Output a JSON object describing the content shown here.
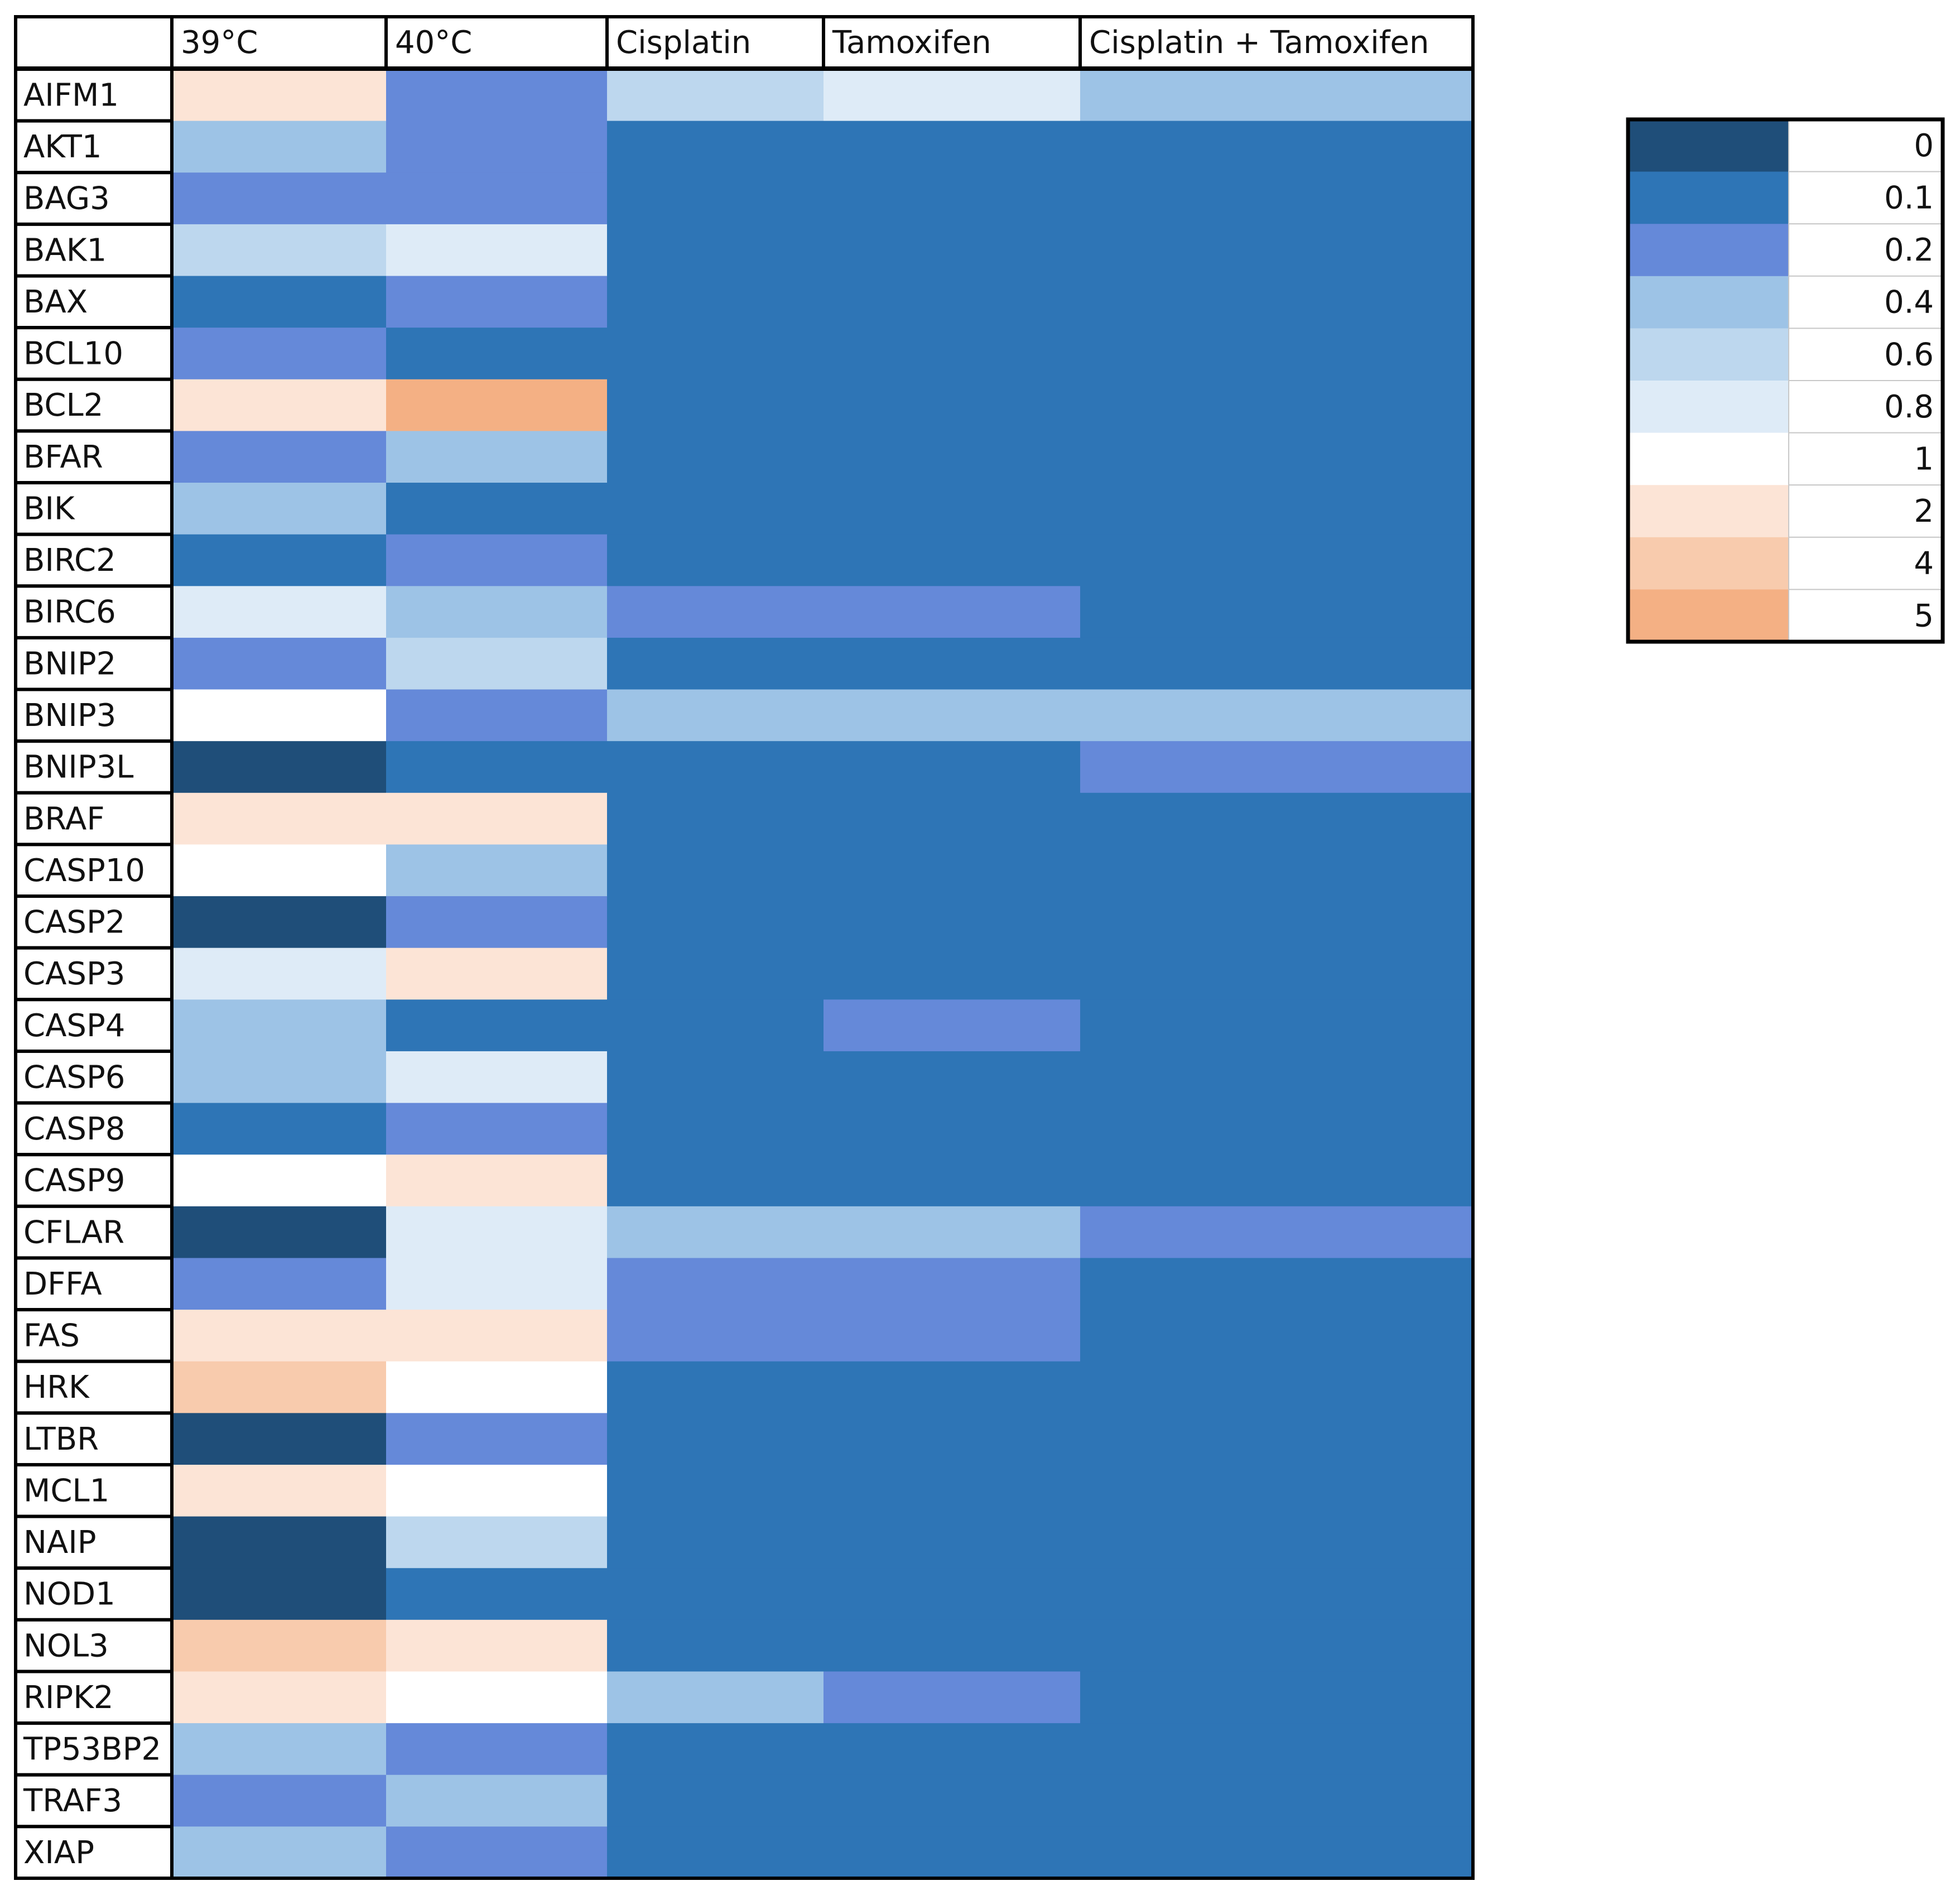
{
  "chart_data": {
    "type": "heatmap",
    "columns": [
      "39°C",
      "40°C",
      "Cisplatin",
      "Tamoxifen",
      "Cisplatin + Tamoxifen"
    ],
    "rows": [
      "AIFM1",
      "AKT1",
      "BAG3",
      "BAK1",
      "BAX",
      "BCL10",
      "BCL2",
      "BFAR",
      "BIK",
      "BIRC2",
      "BIRC6",
      "BNIP2",
      "BNIP3",
      "BNIP3L",
      "BRAF",
      "CASP10",
      "CASP2",
      "CASP3",
      "CASP4",
      "CASP6",
      "CASP8",
      "CASP9",
      "CFLAR",
      "DFFA",
      "FAS",
      "HRK",
      "LTBR",
      "MCL1",
      "NAIP",
      "NOD1",
      "NOL3",
      "RIPK2",
      "TP53BP2",
      "TRAF3",
      "XIAP"
    ],
    "values": [
      [
        2,
        0.2,
        0.6,
        0.8,
        0.4
      ],
      [
        0.4,
        0.2,
        0.1,
        0.1,
        0.1
      ],
      [
        0.2,
        0.2,
        0.1,
        0.1,
        0.1
      ],
      [
        0.6,
        0.8,
        0.1,
        0.1,
        0.1
      ],
      [
        0.1,
        0.2,
        0.1,
        0.1,
        0.1
      ],
      [
        0.2,
        0.1,
        0.1,
        0.1,
        0.1
      ],
      [
        2,
        5,
        0.1,
        0.1,
        0.1
      ],
      [
        0.2,
        0.4,
        0.1,
        0.1,
        0.1
      ],
      [
        0.4,
        0.1,
        0.1,
        0.1,
        0.1
      ],
      [
        0.1,
        0.2,
        0.1,
        0.1,
        0.1
      ],
      [
        0.8,
        0.4,
        0.2,
        0.2,
        0.1
      ],
      [
        0.2,
        0.6,
        0.1,
        0.1,
        0.1
      ],
      [
        1,
        0.2,
        0.4,
        0.4,
        0.4
      ],
      [
        0,
        0.1,
        0.1,
        0.1,
        0.2
      ],
      [
        2,
        2,
        0.1,
        0.1,
        0.1
      ],
      [
        1,
        0.4,
        0.1,
        0.1,
        0.1
      ],
      [
        0,
        0.2,
        0.1,
        0.1,
        0.1
      ],
      [
        0.8,
        2,
        0.1,
        0.1,
        0.1
      ],
      [
        0.4,
        0.1,
        0.1,
        0.2,
        0.1
      ],
      [
        0.4,
        0.8,
        0.1,
        0.1,
        0.1
      ],
      [
        0.1,
        0.2,
        0.1,
        0.1,
        0.1
      ],
      [
        1,
        2,
        0.1,
        0.1,
        0.1
      ],
      [
        0,
        0.8,
        0.4,
        0.4,
        0.2
      ],
      [
        0.2,
        0.8,
        0.2,
        0.2,
        0.1
      ],
      [
        2,
        2,
        0.2,
        0.2,
        0.1
      ],
      [
        4,
        1,
        0.1,
        0.1,
        0.1
      ],
      [
        0,
        0.2,
        0.1,
        0.1,
        0.1
      ],
      [
        2,
        1,
        0.1,
        0.1,
        0.1
      ],
      [
        0,
        0.6,
        0.1,
        0.1,
        0.1
      ],
      [
        0,
        0.1,
        0.1,
        0.1,
        0.1
      ],
      [
        4,
        2,
        0.1,
        0.1,
        0.1
      ],
      [
        2,
        1,
        0.4,
        0.2,
        0.1
      ],
      [
        0.4,
        0.2,
        0.1,
        0.1,
        0.1
      ],
      [
        0.2,
        0.4,
        0.1,
        0.1,
        0.1
      ],
      [
        0.4,
        0.2,
        0.1,
        0.1,
        0.1
      ]
    ],
    "legend": {
      "placement": "top-right",
      "stops": [
        {
          "value": 0,
          "label": "0",
          "color": "#1f4e79"
        },
        {
          "value": 0.1,
          "label": "0.1",
          "color": "#2e75b6"
        },
        {
          "value": 0.2,
          "label": "0.2",
          "color": "#6589d9"
        },
        {
          "value": 0.4,
          "label": "0.4",
          "color": "#9dc3e6"
        },
        {
          "value": 0.6,
          "label": "0.6",
          "color": "#bdd7ee"
        },
        {
          "value": 0.8,
          "label": "0.8",
          "color": "#deebf7"
        },
        {
          "value": 1,
          "label": "1",
          "color": "#ffffff"
        },
        {
          "value": 2,
          "label": "2",
          "color": "#fce4d6"
        },
        {
          "value": 4,
          "label": "4",
          "color": "#f8cbad"
        },
        {
          "value": 5,
          "label": "5",
          "color": "#f4b084"
        }
      ]
    }
  }
}
